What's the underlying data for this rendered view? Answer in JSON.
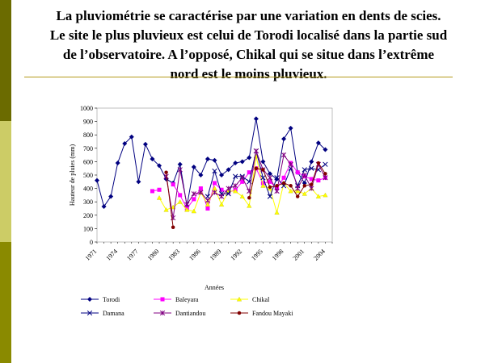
{
  "slide": {
    "title_lines": [
      "La pluviométrie se caractérise par une variation en dents de scies.",
      "Le site le plus pluvieux est celui de Torodi localisé dans la partie sud",
      "de l’observatoire. A l’opposé, Chikal qui se situe dans l’extrême",
      "nord est le moins pluvieux."
    ],
    "accent_colors": [
      "#6b6b00",
      "#cccc66",
      "#8a8a00"
    ]
  },
  "chart_data": {
    "type": "line",
    "ylabel": "Hauteur de pluies (mm)",
    "xlabel": "Années",
    "ylim": [
      0,
      1000
    ],
    "yticks": [
      0,
      100,
      200,
      300,
      400,
      500,
      600,
      700,
      800,
      900,
      1000
    ],
    "x": [
      1971,
      1972,
      1973,
      1974,
      1975,
      1976,
      1977,
      1978,
      1979,
      1980,
      1981,
      1982,
      1983,
      1984,
      1985,
      1986,
      1987,
      1988,
      1989,
      1990,
      1991,
      1992,
      1993,
      1994,
      1995,
      1996,
      1997,
      1998,
      1999,
      2000,
      2001,
      2002,
      2003,
      2004,
      2005
    ],
    "xticks": [
      1971,
      1974,
      1977,
      1980,
      1983,
      1986,
      1989,
      1992,
      1995,
      1998,
      2001,
      2004
    ],
    "grid": false,
    "legend": "bottom",
    "series": [
      {
        "name": "Torodi",
        "color": "#000080",
        "marker": "diamond",
        "values": [
          460,
          265,
          340,
          590,
          735,
          785,
          450,
          730,
          620,
          570,
          470,
          440,
          580,
          270,
          560,
          500,
          620,
          610,
          500,
          540,
          590,
          600,
          630,
          920,
          600,
          510,
          470,
          770,
          850,
          520,
          440,
          600,
          740,
          690,
          null
        ]
      },
      {
        "name": "Baleyara",
        "color": "#ff00ff",
        "marker": "square",
        "values": [
          null,
          null,
          null,
          null,
          null,
          null,
          null,
          null,
          380,
          390,
          null,
          430,
          350,
          250,
          320,
          400,
          250,
          440,
          390,
          370,
          390,
          450,
          520,
          550,
          440,
          450,
          400,
          480,
          590,
          520,
          490,
          470,
          460,
          480,
          null
        ]
      },
      {
        "name": "Chikal",
        "color": "#ffff00",
        "marker": "triangle",
        "values": [
          null,
          null,
          null,
          null,
          null,
          null,
          null,
          null,
          null,
          330,
          240,
          260,
          300,
          240,
          230,
          370,
          280,
          400,
          280,
          380,
          380,
          340,
          270,
          640,
          420,
          400,
          220,
          440,
          380,
          380,
          360,
          400,
          340,
          350,
          null
        ]
      },
      {
        "name": "Damana",
        "color": "#000080",
        "marker": "x",
        "values": [
          null,
          null,
          null,
          null,
          null,
          null,
          null,
          null,
          null,
          null,
          null,
          null,
          null,
          null,
          null,
          null,
          340,
          530,
          360,
          360,
          490,
          490,
          450,
          680,
          480,
          340,
          480,
          420,
          550,
          420,
          540,
          550,
          540,
          580,
          null
        ]
      },
      {
        "name": "Dantiandou",
        "color": "#800080",
        "marker": "star",
        "values": [
          null,
          null,
          null,
          null,
          null,
          null,
          null,
          null,
          null,
          null,
          490,
          180,
          540,
          280,
          360,
          370,
          310,
          370,
          340,
          400,
          420,
          480,
          380,
          680,
          540,
          480,
          380,
          650,
          580,
          400,
          500,
          400,
          580,
          480,
          null
        ]
      },
      {
        "name": "Fandou Mayaki",
        "color": "#800000",
        "marker": "circle",
        "values": [
          null,
          null,
          null,
          null,
          null,
          null,
          null,
          null,
          null,
          null,
          520,
          110,
          null,
          null,
          null,
          null,
          null,
          null,
          null,
          null,
          null,
          null,
          330,
          550,
          540,
          410,
          420,
          440,
          420,
          340,
          420,
          430,
          590,
          510,
          null
        ]
      }
    ]
  }
}
